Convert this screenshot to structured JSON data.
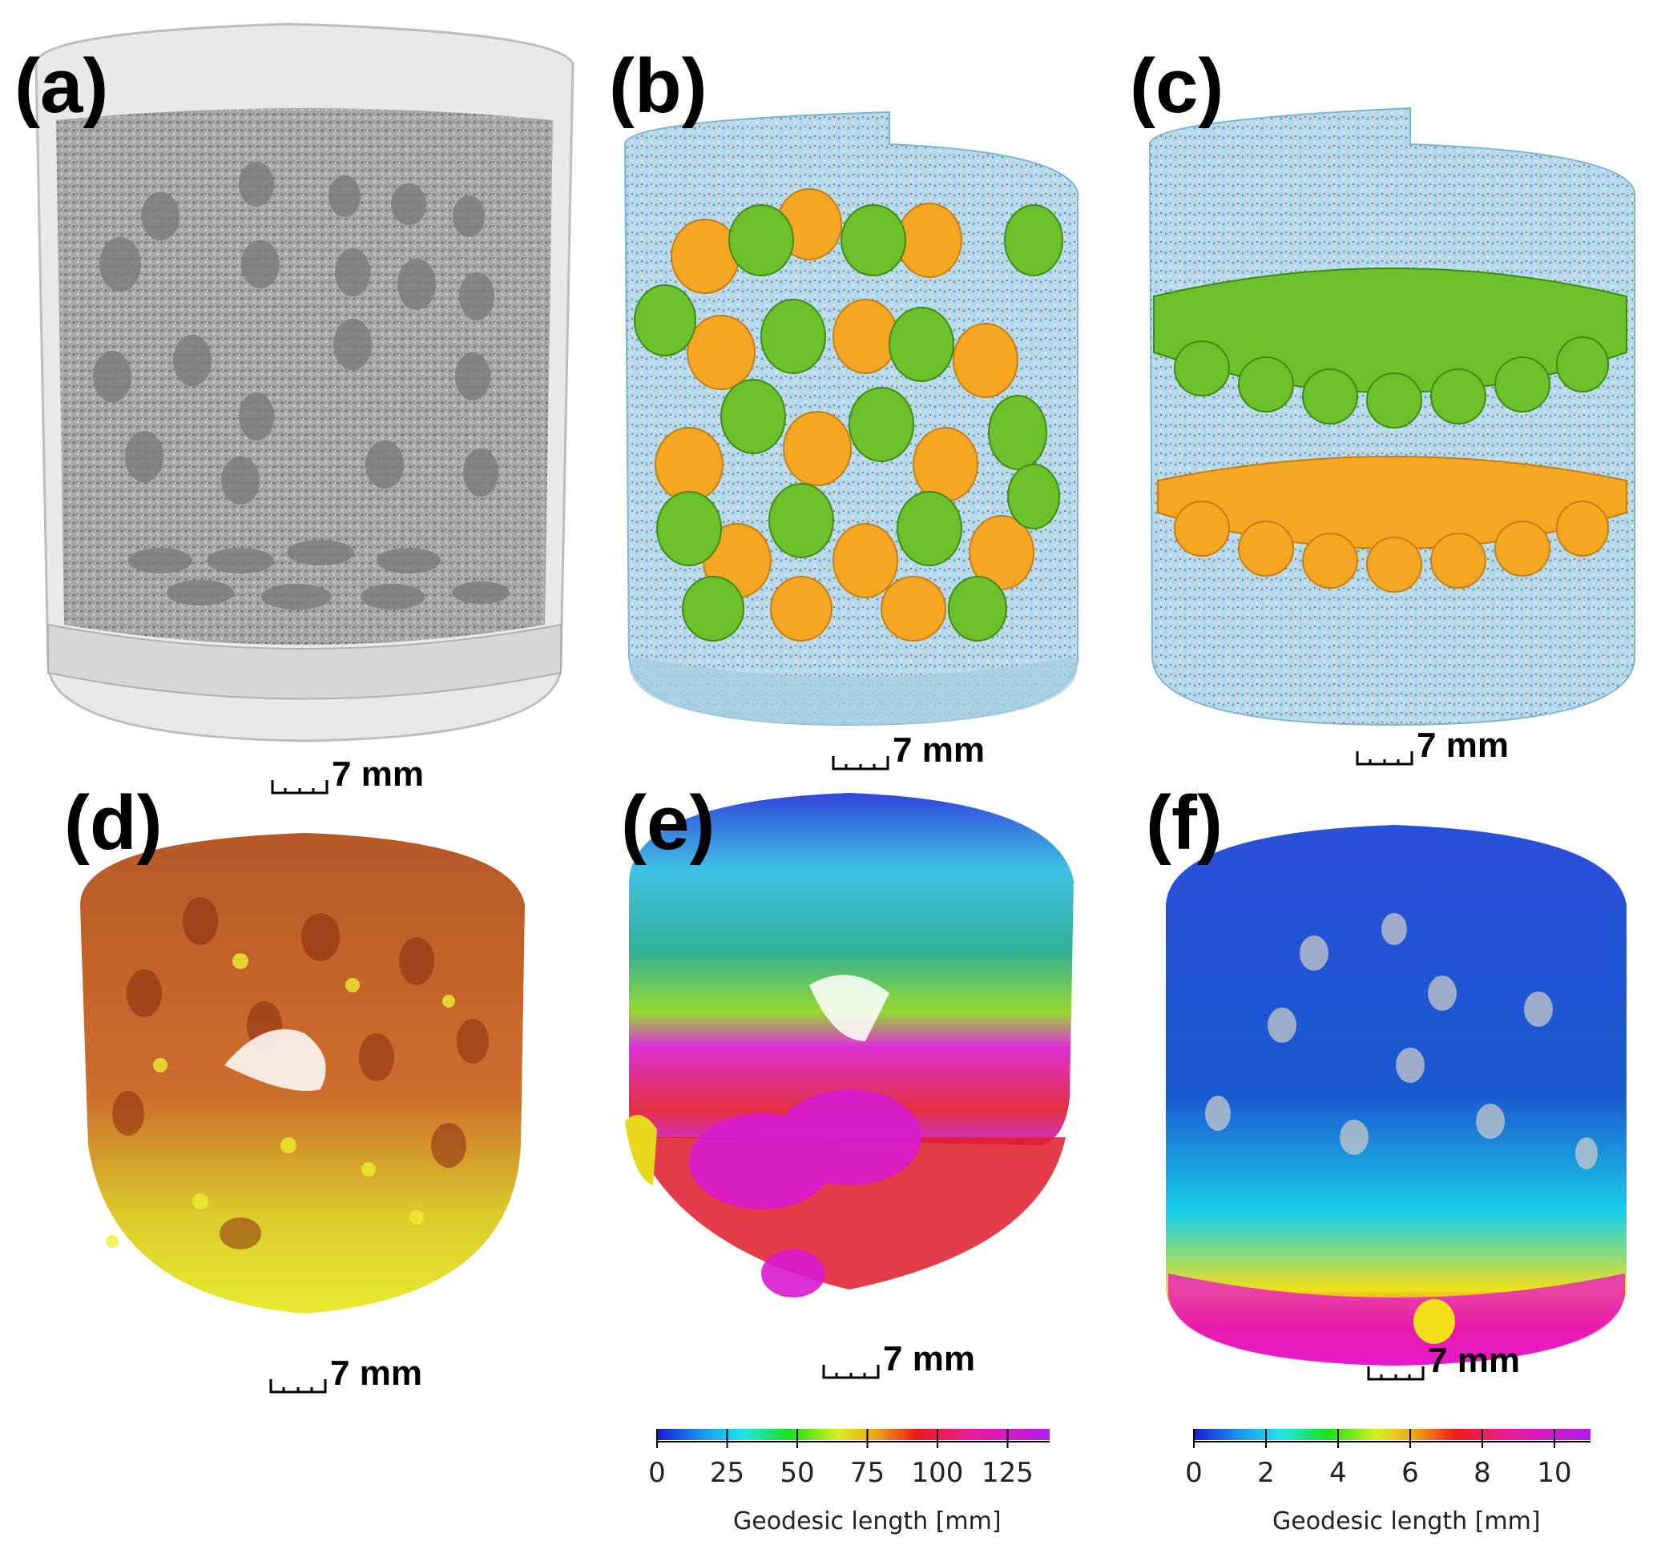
{
  "panels": [
    {
      "id": "a",
      "label": "(a)",
      "scale": "7 mm"
    },
    {
      "id": "b",
      "label": "(b)",
      "scale": "7 mm"
    },
    {
      "id": "c",
      "label": "(c)",
      "scale": "7 mm"
    },
    {
      "id": "d",
      "label": "(d)",
      "scale": "7 mm"
    },
    {
      "id": "e",
      "label": "(e)",
      "scale": "7 mm"
    },
    {
      "id": "f",
      "label": "(f)",
      "scale": "7 mm"
    }
  ],
  "colorbars": {
    "e": {
      "title": "Geodesic length [mm]",
      "ticks": [
        "0",
        "25",
        "50",
        "75",
        "100",
        "125"
      ],
      "tick_values": [
        0,
        25,
        50,
        75,
        100,
        125
      ],
      "max": 140
    },
    "f": {
      "title": "Geodesic length [mm]",
      "ticks": [
        "0",
        "2",
        "4",
        "6",
        "8",
        "10"
      ],
      "tick_values": [
        0,
        2,
        4,
        6,
        8,
        10
      ],
      "max": 11
    }
  },
  "colors": {
    "green_particles": "#6cc02a",
    "orange_particles": "#f5a623",
    "matrix_blue": "#a9d3e6",
    "pore_red": "#a01c1c",
    "gray_sample": "#9a9a9a"
  }
}
